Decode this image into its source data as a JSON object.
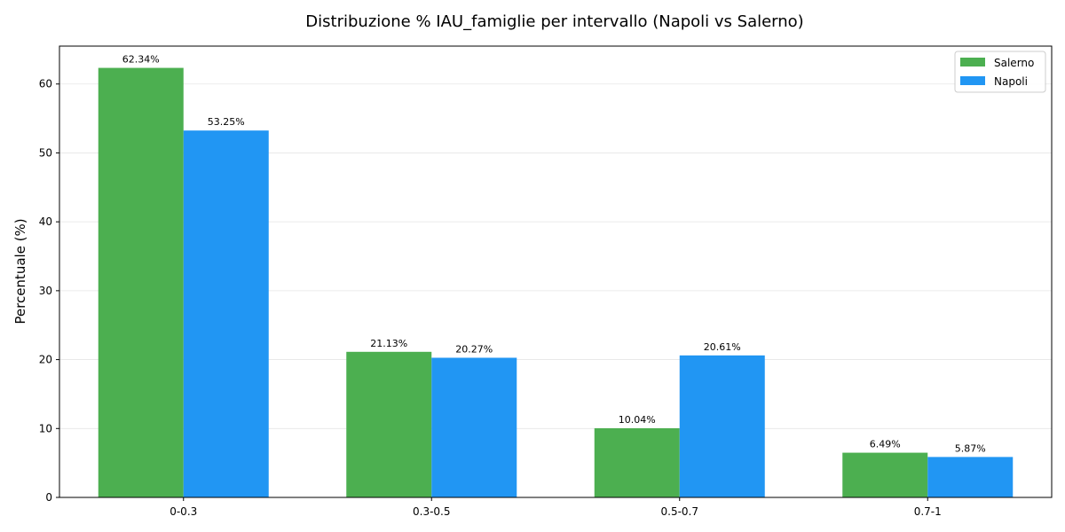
{
  "chart_data": {
    "type": "bar",
    "title": "Distribuzione % IAU_famiglie per intervallo (Napoli vs Salerno)",
    "xlabel": "",
    "ylabel": "Percentuale (%)",
    "categories": [
      "0-0.3",
      "0.3-0.5",
      "0.5-0.7",
      "0.7-1"
    ],
    "series": [
      {
        "name": "Salerno",
        "color": "#4caf50",
        "values": [
          62.34,
          21.13,
          10.04,
          6.49
        ],
        "labels": [
          "62.34%",
          "21.13%",
          "10.04%",
          "6.49%"
        ]
      },
      {
        "name": "Napoli",
        "color": "#2196f3",
        "values": [
          53.25,
          20.27,
          20.61,
          5.87
        ],
        "labels": [
          "53.25%",
          "20.27%",
          "20.61%",
          "5.87%"
        ]
      }
    ],
    "ylim": [
      0,
      65.5
    ],
    "yticks": [
      0,
      10,
      20,
      30,
      40,
      50,
      60
    ],
    "grid": "y",
    "legend": "top-right"
  }
}
